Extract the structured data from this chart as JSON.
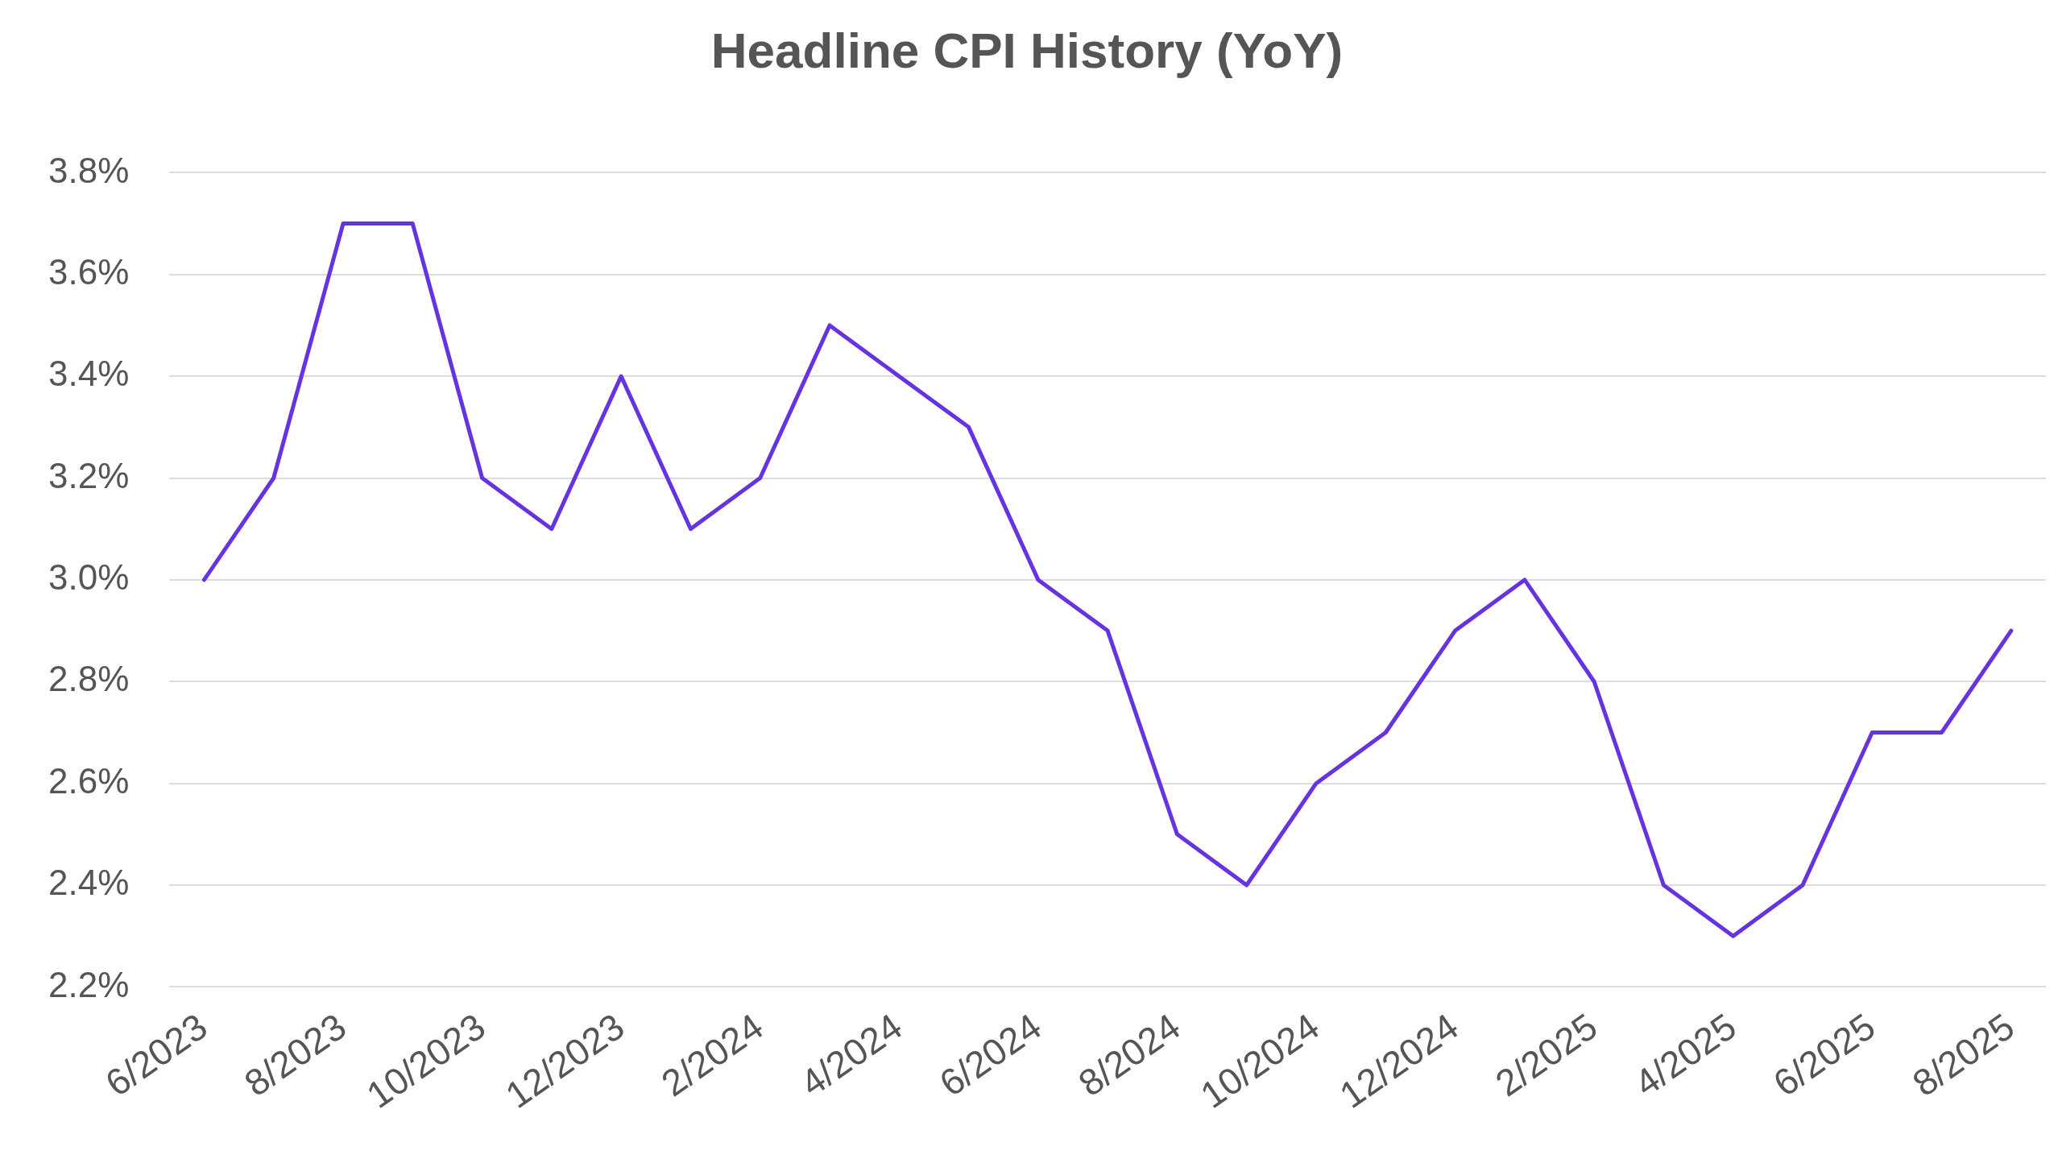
{
  "chart_data": {
    "type": "line",
    "title": "Headline CPI History (YoY)",
    "categories": [
      "6/2023",
      null,
      "8/2023",
      null,
      "10/2023",
      null,
      "12/2023",
      null,
      "2/2024",
      null,
      "4/2024",
      null,
      "6/2024",
      null,
      "8/2024",
      null,
      "10/2024",
      null,
      "12/2024",
      null,
      "2/2025",
      null,
      "4/2025",
      null,
      "6/2025",
      null,
      "8/2025"
    ],
    "series": [
      {
        "color": "#6633e0",
        "values": [
          3.0,
          3.2,
          3.7,
          3.7,
          3.2,
          3.1,
          3.4,
          3.1,
          3.2,
          3.5,
          3.4,
          3.3,
          3.0,
          2.9,
          2.5,
          2.4,
          2.6,
          2.7,
          2.9,
          3.0,
          2.8,
          2.4,
          2.3,
          2.4,
          2.7,
          2.7,
          2.9
        ]
      }
    ],
    "ylim": [
      2.2,
      3.8
    ],
    "yticks": [
      {
        "value": 2.2,
        "label": "2.2%"
      },
      {
        "value": 2.4,
        "label": "2.4%"
      },
      {
        "value": 2.6,
        "label": "2.6%"
      },
      {
        "value": 2.8,
        "label": "2.8%"
      },
      {
        "value": 3.0,
        "label": "3.0%"
      },
      {
        "value": 3.2,
        "label": "3.2%"
      },
      {
        "value": 3.4,
        "label": "3.4%"
      },
      {
        "value": 3.6,
        "label": "3.6%"
      },
      {
        "value": 3.8,
        "label": "3.8%"
      }
    ],
    "grid": "y",
    "legend": false,
    "marker": "none",
    "line_style": "solid"
  }
}
